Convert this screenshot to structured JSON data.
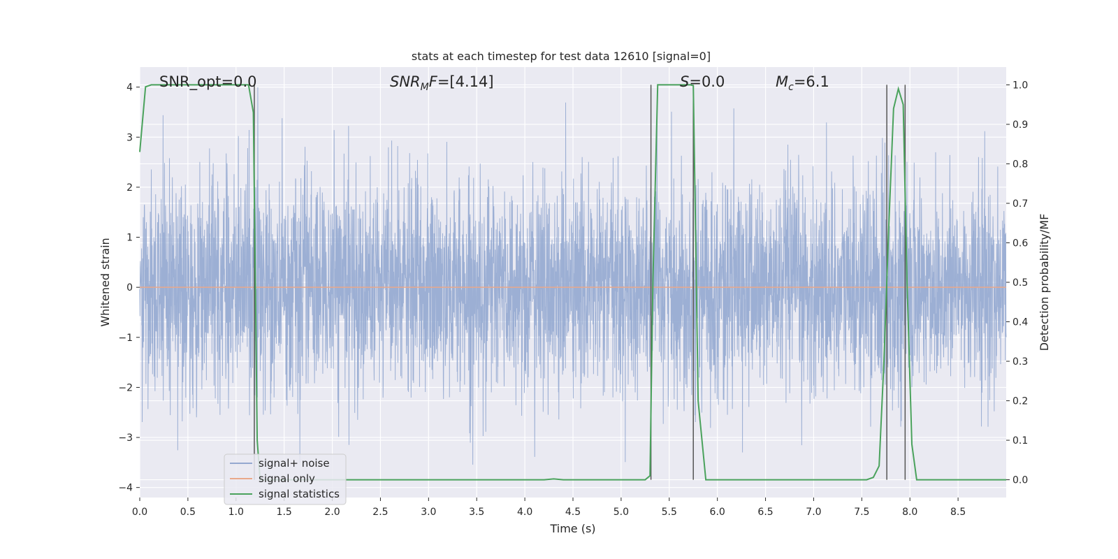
{
  "chart_data": {
    "type": "line",
    "title": "stats at each timestep for test data 12610 [signal=0]",
    "xlabel": "Time (s)",
    "ylabel": "Whitened strain",
    "y2label": "Detection probability/MF",
    "xlim": [
      0.0,
      9.0
    ],
    "ylim": [
      -4.2,
      4.4
    ],
    "y2lim": [
      -0.045,
      1.045
    ],
    "x_ticks": [
      "0.0",
      "0.5",
      "1.0",
      "1.5",
      "2.0",
      "2.5",
      "3.0",
      "3.5",
      "4.0",
      "4.5",
      "5.0",
      "5.5",
      "6.0",
      "6.5",
      "7.0",
      "7.5",
      "8.0",
      "8.5"
    ],
    "y_ticks": [
      "4",
      "3",
      "2",
      "1",
      "0",
      "−1",
      "−2",
      "−3",
      "−4"
    ],
    "y2_ticks": [
      "1.0",
      "0.9",
      "0.8",
      "0.7",
      "0.6",
      "0.5",
      "0.4",
      "0.3",
      "0.2",
      "0.1",
      "0.0"
    ],
    "grid": true,
    "legend_position": "lower-left",
    "series": [
      {
        "name": "signal+ noise",
        "axis": "left",
        "color": "#94a8d0",
        "kind": "noise",
        "sigma": 1.05,
        "peak_max": 4.0,
        "peak_min": -3.8
      },
      {
        "name": "signal only",
        "axis": "left",
        "color": "#e9a88a",
        "x": [
          0.0,
          9.0
        ],
        "y": [
          0.0,
          0.0
        ]
      },
      {
        "name": "signal statistics",
        "axis": "right",
        "color": "#4aa25c",
        "x": [
          0.0,
          0.06,
          0.12,
          0.5,
          1.0,
          1.13,
          1.18,
          1.22,
          1.25,
          4.2,
          4.3,
          4.4,
          5.25,
          5.3,
          5.33,
          5.38,
          5.72,
          5.75,
          5.8,
          5.88,
          7.55,
          7.62,
          7.68,
          7.73,
          7.78,
          7.83,
          7.88,
          7.93,
          7.97,
          8.02,
          8.07,
          9.0
        ],
        "y": [
          0.83,
          0.995,
          1.0,
          1.0,
          1.0,
          1.0,
          0.93,
          0.1,
          0.0,
          0.0,
          0.002,
          0.0,
          0.0,
          0.01,
          0.5,
          1.0,
          1.0,
          0.998,
          0.2,
          0.0,
          0.0,
          0.006,
          0.035,
          0.3,
          0.64,
          0.94,
          0.99,
          0.95,
          0.5,
          0.09,
          0.0,
          0.0
        ]
      }
    ],
    "vertical_lines": [
      1.19,
      5.31,
      5.75,
      7.76,
      7.95
    ],
    "annotations": [
      {
        "id": "snr-opt",
        "text": "SNR_opt=0.0"
      },
      {
        "id": "snr-mf",
        "text": "SNR_MF=[4.14]"
      },
      {
        "id": "s-value",
        "text": "S=0.0"
      },
      {
        "id": "mc-value",
        "text": "M_c=6.1"
      }
    ]
  }
}
